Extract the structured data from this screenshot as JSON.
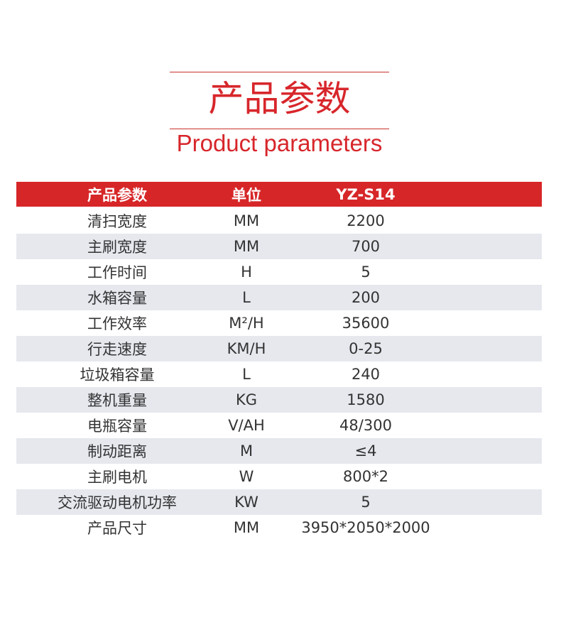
{
  "title_cn": "产品参数",
  "title_en": "Product parameters",
  "header": [
    "产品参数",
    "单位",
    "YZ-S14"
  ],
  "rows": [
    [
      "清扫宽度",
      "MM",
      "2200"
    ],
    [
      "主刷宽度",
      "MM",
      "700"
    ],
    [
      "工作时间",
      "H",
      "5"
    ],
    [
      "水箱容量",
      "L",
      "200"
    ],
    [
      "工作效率",
      "M²/H",
      "35600"
    ],
    [
      "行走速度",
      "KM/H",
      "0-25"
    ],
    [
      "垃圾箱容量",
      "L",
      "240"
    ],
    [
      "整机重量",
      "KG",
      "1580"
    ],
    [
      "电瓶容量",
      "V/AH",
      "48/300"
    ],
    [
      "制动距离",
      "M",
      "≤4"
    ],
    [
      "主刷电机",
      "W",
      "800*2"
    ],
    [
      "交流驱动电机功率",
      "KW",
      "5"
    ],
    [
      "产品尺寸",
      "MM",
      "3950*2050*2000"
    ]
  ],
  "colors": {
    "accent": "#d72628",
    "stripe": "#e6e8ee"
  }
}
